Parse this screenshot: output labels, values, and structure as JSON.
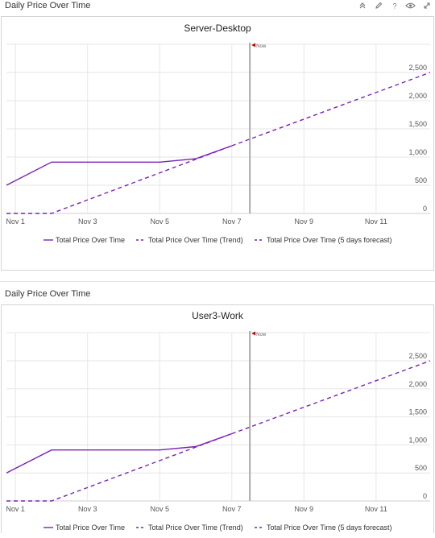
{
  "panels": [
    {
      "title": "Daily Price Over Time",
      "chart_data": {
        "type": "line",
        "title": "Server-Desktop",
        "x_type": "date",
        "x_ticks": [
          "Nov 1",
          "Nov 3",
          "Nov 5",
          "Nov 7",
          "Nov 9",
          "Nov 11"
        ],
        "x_tick_dates": [
          "2023-11-01",
          "2023-11-03",
          "2023-11-05",
          "2023-11-07",
          "2023-11-09",
          "2023-11-11"
        ],
        "xlim": [
          "2023-10-31T18:00",
          "2023-11-12T12:00"
        ],
        "y_ticks": [
          "0",
          "500",
          "1,000",
          "1,500",
          "2,000",
          "2,500"
        ],
        "ylim": [
          0,
          2500
        ],
        "now_label": "Now",
        "now_date": "2023-11-07T12:00",
        "legend_position": "bottom",
        "grid": true,
        "series": [
          {
            "name": "Total Price Over Time",
            "style": "solid",
            "color": "#7b22b4",
            "x": [
              "2023-10-31T18:00",
              "2023-11-02",
              "2023-11-03",
              "2023-11-04",
              "2023-11-05",
              "2023-11-06",
              "2023-11-07"
            ],
            "y": [
              500,
              910,
              910,
              910,
              910,
              970,
              1200
            ]
          },
          {
            "name": "Total Price Over Time (Trend)",
            "style": "dashed",
            "color": "#7b22b4",
            "x": [
              "2023-10-31T18:00",
              "2023-11-02",
              "2023-11-07"
            ],
            "y": [
              0,
              0,
              1200
            ]
          },
          {
            "name": "Total Price Over Time (5 days forecast)",
            "style": "dashed",
            "color": "#7b22b4",
            "x": [
              "2023-11-07",
              "2023-11-12T12:00"
            ],
            "y": [
              1200,
              2500
            ]
          }
        ]
      }
    },
    {
      "title": "Daily Price Over Time",
      "chart_data": {
        "type": "line",
        "title": "User3-Work",
        "x_type": "date",
        "x_ticks": [
          "Nov 1",
          "Nov 3",
          "Nov 5",
          "Nov 7",
          "Nov 9",
          "Nov 11"
        ],
        "x_tick_dates": [
          "2023-11-01",
          "2023-11-03",
          "2023-11-05",
          "2023-11-07",
          "2023-11-09",
          "2023-11-11"
        ],
        "xlim": [
          "2023-10-31T18:00",
          "2023-11-12T12:00"
        ],
        "y_ticks": [
          "0",
          "500",
          "1,000",
          "1,500",
          "2,000",
          "2,500"
        ],
        "ylim": [
          0,
          2500
        ],
        "now_label": "Now",
        "now_date": "2023-11-07T12:00",
        "legend_position": "bottom",
        "grid": true,
        "series": [
          {
            "name": "Total Price Over Time",
            "style": "solid",
            "color": "#7b22b4",
            "x": [
              "2023-10-31T18:00",
              "2023-11-02",
              "2023-11-03",
              "2023-11-04",
              "2023-11-05",
              "2023-11-06",
              "2023-11-07"
            ],
            "y": [
              500,
              910,
              910,
              910,
              910,
              970,
              1200
            ]
          },
          {
            "name": "Total Price Over Time (Trend)",
            "style": "dashed",
            "color": "#7b22b4",
            "x": [
              "2023-10-31T18:00",
              "2023-11-02",
              "2023-11-07"
            ],
            "y": [
              0,
              0,
              1200
            ]
          },
          {
            "name": "Total Price Over Time (5 days forecast)",
            "style": "dashed",
            "color": "#7b22b4",
            "x": [
              "2023-11-07",
              "2023-11-12T12:00"
            ],
            "y": [
              1200,
              2500
            ]
          }
        ]
      }
    }
  ],
  "tools": [
    "collapse-icon",
    "edit-icon",
    "help-icon",
    "view-icon",
    "expand-icon"
  ],
  "colors": {
    "series": "#7b22b4",
    "now_marker": "#cc0000",
    "grid": "#e6e6e6",
    "now_line": "#aaaaaa"
  }
}
